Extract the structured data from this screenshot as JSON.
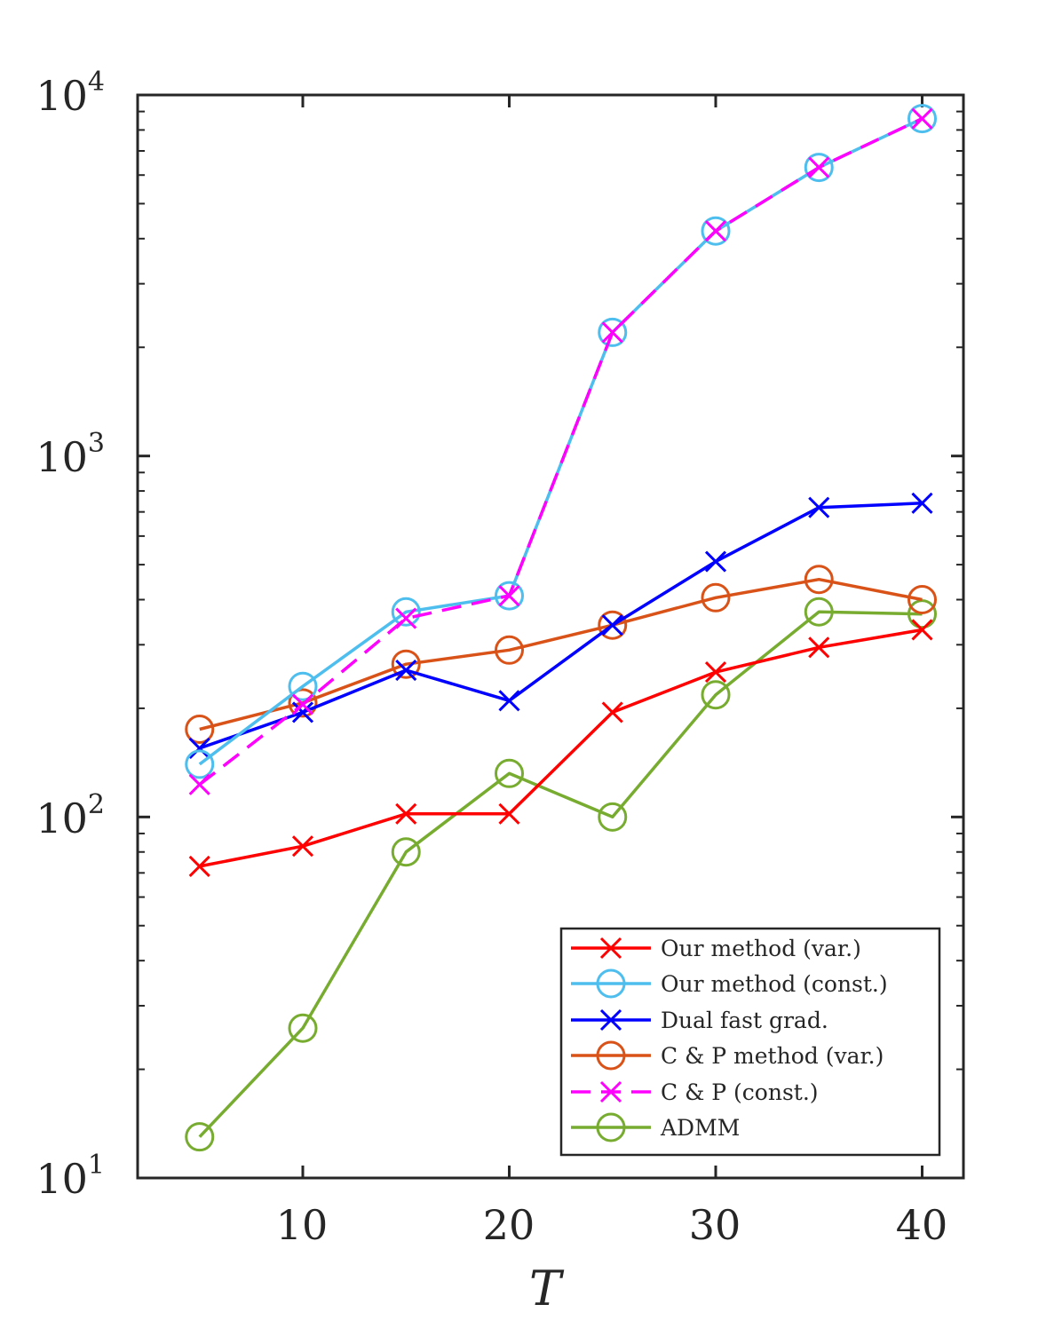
{
  "chart_data": {
    "type": "line",
    "title": "",
    "xlabel": "T",
    "ylabel": "",
    "yscale": "log",
    "xlim": [
      2,
      42
    ],
    "ylim": [
      10,
      10000
    ],
    "xticks": [
      10,
      20,
      30,
      40
    ],
    "xtick_labels": [
      "10",
      "20",
      "30",
      "40"
    ],
    "ytick_labels": [
      {
        "value": 10,
        "base": "10",
        "exp": "1"
      },
      {
        "value": 100,
        "base": "10",
        "exp": "2"
      },
      {
        "value": 1000,
        "base": "10",
        "exp": "3"
      },
      {
        "value": 10000,
        "base": "10",
        "exp": "4"
      }
    ],
    "legend_position": "bottom-right",
    "x": [
      5,
      10,
      15,
      20,
      25,
      30,
      35,
      40
    ],
    "series": [
      {
        "name": "Our method (var.)",
        "color": "#ff0000",
        "marker": "x",
        "dash": "solid",
        "values": [
          73,
          83,
          102,
          102,
          195,
          252,
          295,
          330
        ]
      },
      {
        "name": "Our method (const.)",
        "color": "#4dbeee",
        "marker": "o",
        "dash": "solid",
        "values": [
          140,
          230,
          370,
          410,
          2200,
          4200,
          6300,
          8600
        ]
      },
      {
        "name": "Dual fast grad.",
        "color": "#0000ff",
        "marker": "x",
        "dash": "solid",
        "values": [
          155,
          195,
          255,
          210,
          340,
          510,
          720,
          740
        ]
      },
      {
        "name": "C & P method (var.)",
        "color": "#d95319",
        "marker": "o",
        "dash": "solid",
        "values": [
          175,
          207,
          265,
          290,
          340,
          405,
          455,
          400
        ]
      },
      {
        "name": "C & P (const.)",
        "color": "#ff00ff",
        "marker": "x",
        "dash": "dashed",
        "values": [
          123,
          205,
          355,
          410,
          2200,
          4200,
          6300,
          8600
        ]
      },
      {
        "name": "ADMM",
        "color": "#77ac30",
        "marker": "o",
        "dash": "solid",
        "values": [
          13,
          26,
          80,
          132,
          100,
          218,
          370,
          365
        ]
      }
    ]
  }
}
